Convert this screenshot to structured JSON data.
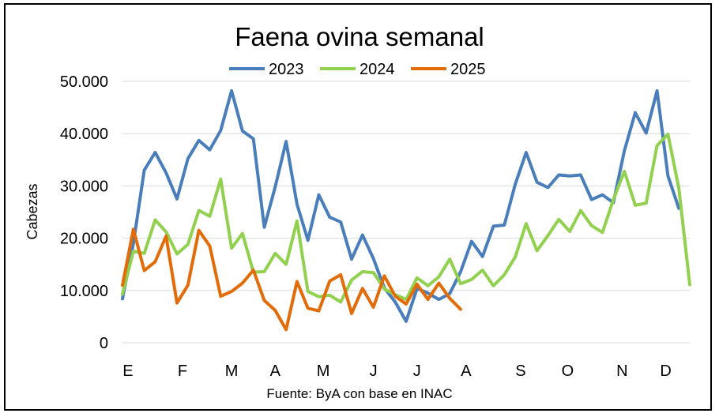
{
  "chart_data": {
    "type": "line",
    "title": "Faena ovina semanal",
    "ylabel": "Cabezas",
    "xlabel": "",
    "source": "Fuente: ByA con base en INAC",
    "ylim": [
      0,
      50000
    ],
    "yticks": [
      "0",
      "10.000",
      "20.000",
      "30.000",
      "40.000",
      "50.000"
    ],
    "ytick_values": [
      0,
      10000,
      20000,
      30000,
      40000,
      50000
    ],
    "xlim": [
      1,
      53
    ],
    "month_ticks": [
      {
        "label": "E",
        "week": 1.5
      },
      {
        "label": "F",
        "week": 6.5
      },
      {
        "label": "M",
        "week": 11
      },
      {
        "label": "A",
        "week": 15
      },
      {
        "label": "M",
        "week": 19.4
      },
      {
        "label": "J",
        "week": 24
      },
      {
        "label": "J",
        "week": 28
      },
      {
        "label": "A",
        "week": 32.5
      },
      {
        "label": "S",
        "week": 37.5
      },
      {
        "label": "O",
        "week": 41.8
      },
      {
        "label": "N",
        "week": 46.8
      },
      {
        "label": "D",
        "week": 50.8
      }
    ],
    "legend_position": "top",
    "grid": true,
    "series": [
      {
        "name": "2023",
        "color": "#4A7EBB",
        "x": [
          1,
          2,
          3,
          4,
          5,
          6,
          7,
          8,
          9,
          10,
          11,
          12,
          13,
          14,
          15,
          16,
          17,
          18,
          19,
          20,
          21,
          22,
          23,
          24,
          25,
          26,
          27,
          28,
          29,
          30,
          31,
          32,
          33,
          34,
          35,
          36,
          37,
          38,
          39,
          40,
          41,
          42,
          43,
          44,
          45,
          46,
          47,
          48,
          49,
          50,
          51,
          52
        ],
        "values": [
          8400,
          19000,
          33000,
          36400,
          32500,
          27500,
          35200,
          38700,
          36900,
          40600,
          48200,
          40500,
          39000,
          22100,
          29800,
          38500,
          26500,
          19600,
          28300,
          24000,
          23100,
          16000,
          20600,
          16100,
          10500,
          7800,
          4100,
          10400,
          9500,
          8300,
          9400,
          13600,
          19400,
          16500,
          22300,
          22500,
          30300,
          36400,
          30700,
          29700,
          32100,
          31900,
          32100,
          27400,
          28300,
          26800,
          36700,
          44000,
          40100,
          48200,
          31900,
          25700
        ]
      },
      {
        "name": "2024",
        "color": "#92D050",
        "x": [
          1,
          2,
          3,
          4,
          5,
          6,
          7,
          8,
          9,
          10,
          11,
          12,
          13,
          14,
          15,
          16,
          17,
          18,
          19,
          20,
          21,
          22,
          23,
          24,
          25,
          26,
          27,
          28,
          29,
          30,
          31,
          32,
          33,
          34,
          35,
          36,
          37,
          38,
          39,
          40,
          41,
          42,
          43,
          44,
          45,
          46,
          47,
          48,
          49,
          50,
          51,
          52,
          53
        ],
        "values": [
          9300,
          17500,
          17100,
          23500,
          21200,
          17000,
          18800,
          25300,
          24200,
          31300,
          18100,
          20900,
          13500,
          13600,
          17100,
          15000,
          23300,
          9800,
          8800,
          9100,
          7800,
          12000,
          13600,
          13400,
          10300,
          9200,
          8300,
          12400,
          10900,
          12600,
          16000,
          11300,
          12100,
          13900,
          10900,
          13000,
          16400,
          22800,
          17600,
          20500,
          23600,
          21300,
          25300,
          22400,
          21100,
          27400,
          32800,
          26300,
          26700,
          37700,
          39900,
          29500,
          11100
        ]
      },
      {
        "name": "2025",
        "color": "#E36C0A",
        "x": [
          1,
          2,
          3,
          4,
          5,
          6,
          7,
          8,
          9,
          10,
          11,
          12,
          13,
          14,
          15,
          16,
          17,
          18,
          19,
          20,
          21,
          22,
          23,
          24,
          25,
          26,
          27,
          28,
          29,
          30,
          31,
          32
        ],
        "values": [
          11000,
          21700,
          13800,
          15500,
          20400,
          7600,
          11000,
          21500,
          18500,
          8900,
          9800,
          11400,
          13900,
          8100,
          6200,
          2500,
          11700,
          6600,
          6100,
          11800,
          13000,
          5600,
          10400,
          6800,
          12800,
          8900,
          7400,
          11200,
          8300,
          11400,
          8500,
          6400
        ]
      }
    ]
  }
}
